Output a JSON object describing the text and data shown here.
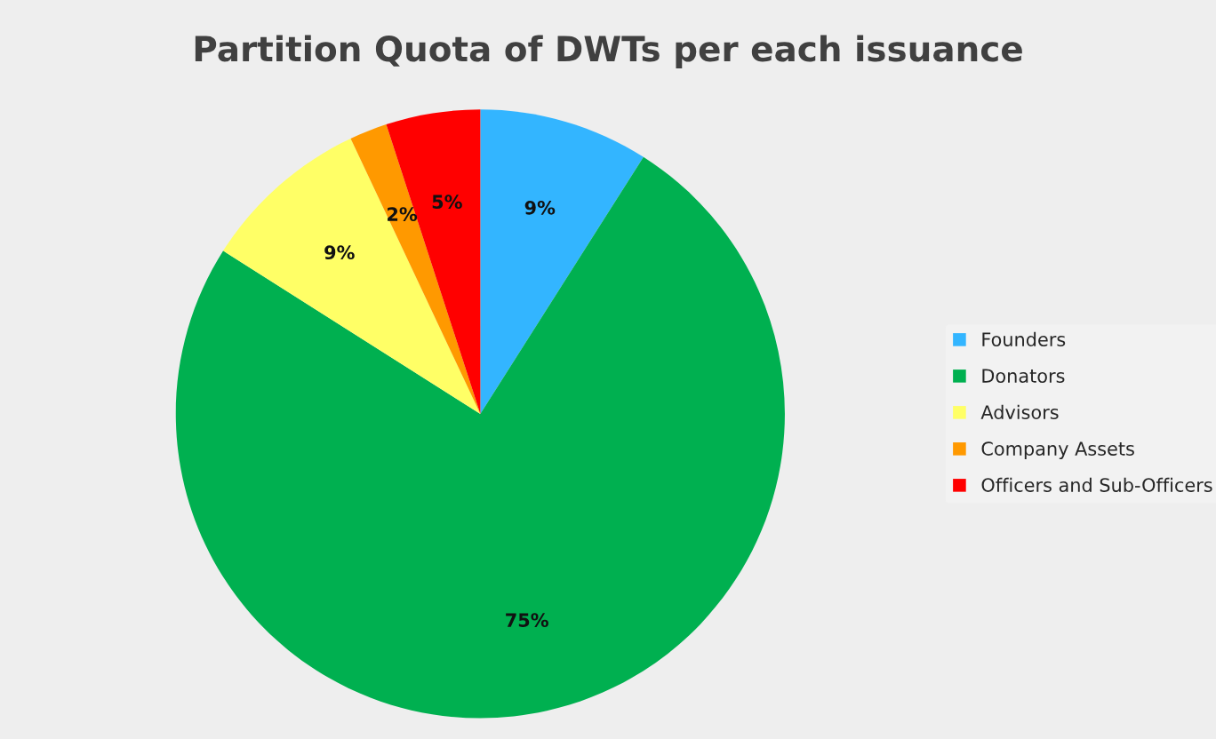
{
  "chart_data": {
    "type": "pie",
    "title": "Partition Quota of DWTs per each issuance",
    "categories": [
      "Founders",
      "Donators",
      "Advisors",
      "Company Assets",
      "Officers and Sub-Officers"
    ],
    "values": [
      9,
      75,
      9,
      2,
      5
    ],
    "colors": [
      "#33b5ff",
      "#00b050",
      "#ffff66",
      "#ff9900",
      "#ff0000"
    ],
    "value_labels": [
      "9%",
      "75%",
      "9%",
      "2%",
      "5%"
    ],
    "legend": "right"
  }
}
